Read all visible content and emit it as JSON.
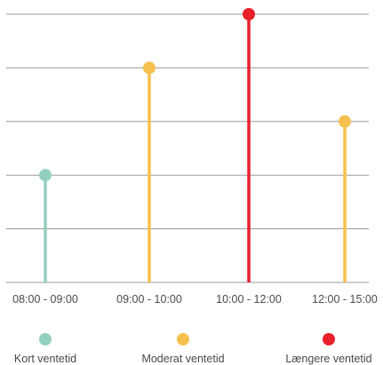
{
  "chart_data": {
    "type": "lollipop",
    "categories": [
      "08:00 - 09:00",
      "09:00 - 10:00",
      "10:00 - 12:00",
      "12:00 - 15:00"
    ],
    "values": [
      2,
      4,
      5,
      3
    ],
    "point_levels": [
      "short",
      "moderate",
      "long",
      "moderate"
    ],
    "ylim": [
      0,
      5
    ],
    "grid": true,
    "title": "",
    "xlabel": "",
    "ylabel": "",
    "legend": {
      "placement": "bottom",
      "items": [
        {
          "key": "short",
          "label": "Kort ventetid",
          "color": "#93cfc0"
        },
        {
          "key": "moderate",
          "label": "Moderat ventetid",
          "color": "#f6c04f"
        },
        {
          "key": "long",
          "label": "Længere ventetid",
          "color": "#e8202a"
        }
      ]
    }
  }
}
